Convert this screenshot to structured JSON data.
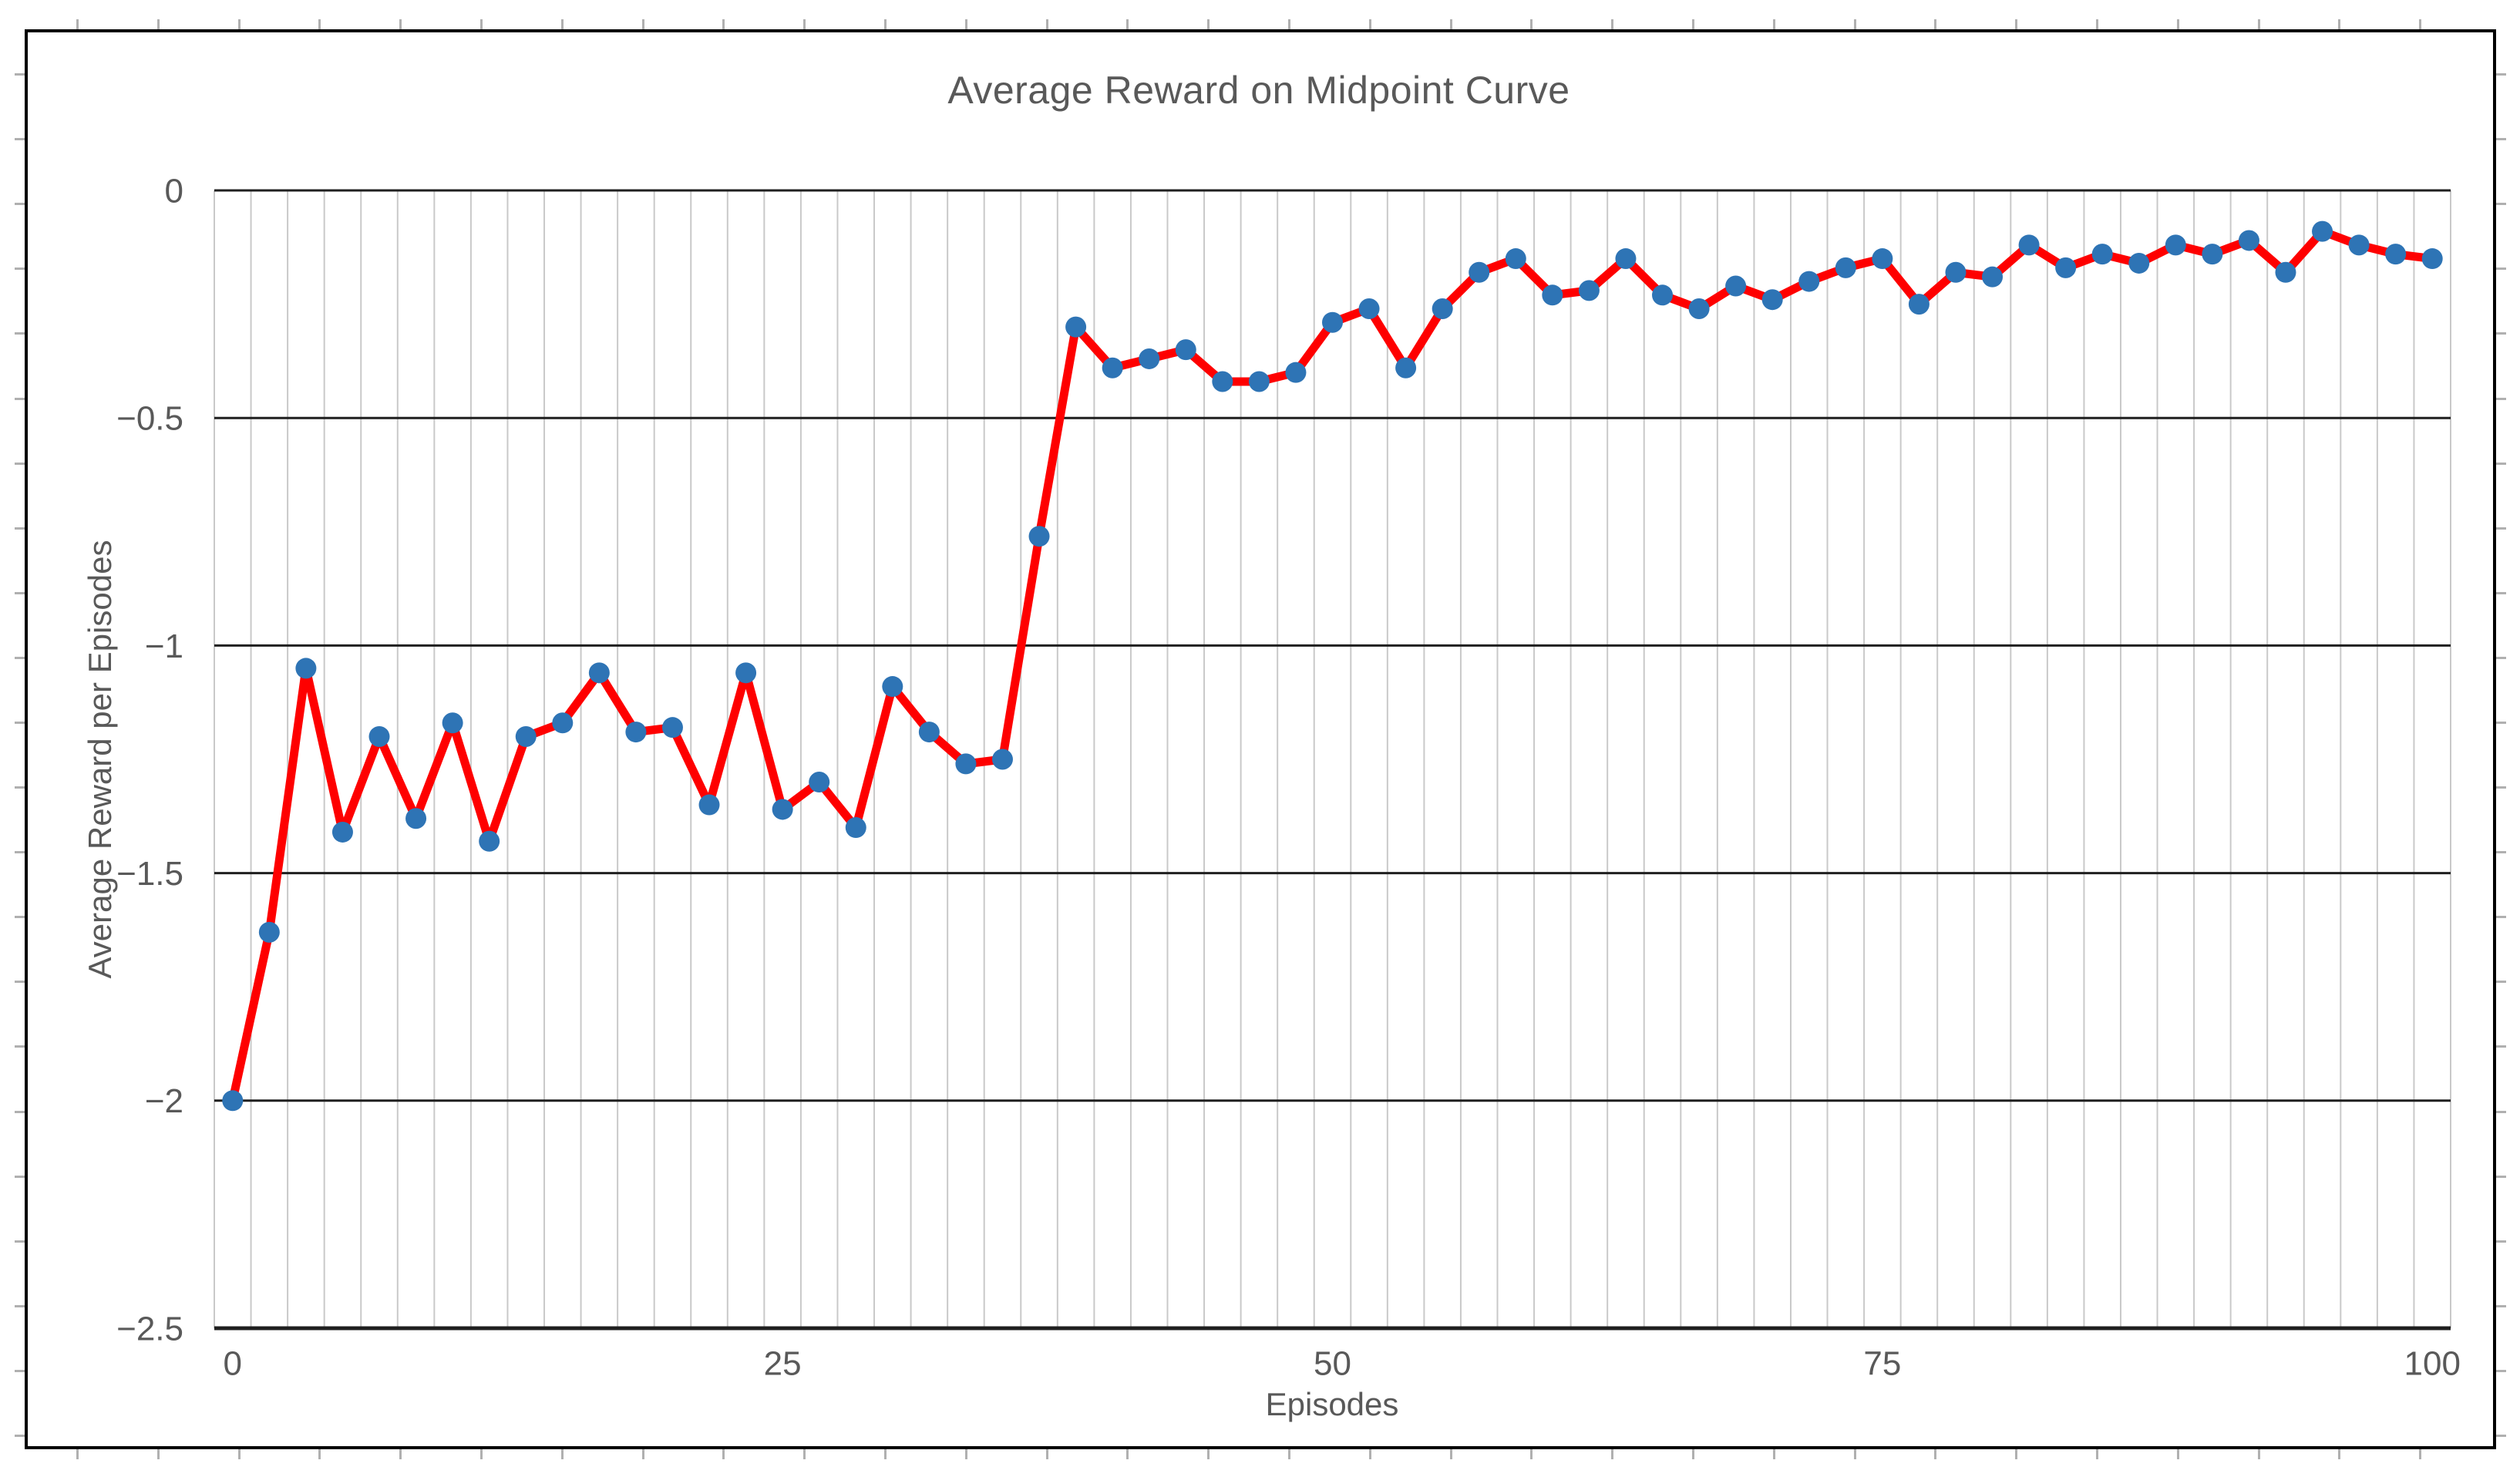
{
  "figure": {
    "title": "Average Reward on Midpoint Curve"
  },
  "chart_data": {
    "type": "line",
    "title": "Average Reward on Midpoint Curve",
    "xlabel": "Episodes",
    "ylabel": "Average Reward per Episodes",
    "ylim": [
      -2.5,
      0
    ],
    "xlim_labels": [
      0,
      100
    ],
    "grid": "vertical-minor-gray, horizontal-major-black",
    "legend_position": "none",
    "n_points": 61,
    "x_tick_labels": [
      "0",
      "25",
      "50",
      "75",
      "100"
    ],
    "x_tick_indices": [
      0,
      15,
      30,
      45,
      60
    ],
    "y_tick_labels": [
      "0",
      "−0.5",
      "−1",
      "−1.5",
      "−2",
      "−2.5"
    ],
    "y_tick_values": [
      0,
      -0.5,
      -1,
      -1.5,
      -2,
      -2.5
    ],
    "x": [
      0,
      1.67,
      3.33,
      5,
      6.67,
      8.33,
      10,
      11.67,
      13.33,
      15,
      16.67,
      18.33,
      20,
      21.67,
      23.33,
      25,
      26.67,
      28.33,
      30,
      31.67,
      33.33,
      35,
      36.67,
      38.33,
      40,
      41.67,
      43.33,
      45,
      46.67,
      48.33,
      50,
      51.67,
      53.33,
      55,
      56.67,
      58.33,
      60,
      61.67,
      63.33,
      65,
      66.67,
      68.33,
      70,
      71.67,
      73.33,
      75,
      76.67,
      78.33,
      80,
      81.67,
      83.33,
      85,
      86.67,
      88.33,
      90,
      91.67,
      93.33,
      95,
      96.67,
      98.33,
      100
    ],
    "values": [
      -2.0,
      -1.63,
      -1.05,
      -1.41,
      -1.2,
      -1.38,
      -1.17,
      -1.43,
      -1.2,
      -1.17,
      -1.06,
      -1.19,
      -1.18,
      -1.35,
      -1.06,
      -1.36,
      -1.3,
      -1.4,
      -1.09,
      -1.19,
      -1.26,
      -1.25,
      -0.76,
      -0.3,
      -0.39,
      -0.37,
      -0.35,
      -0.42,
      -0.42,
      -0.4,
      -0.29,
      -0.26,
      -0.39,
      -0.26,
      -0.18,
      -0.15,
      -0.23,
      -0.22,
      -0.15,
      -0.23,
      -0.26,
      -0.21,
      -0.24,
      -0.2,
      -0.17,
      -0.15,
      -0.25,
      -0.18,
      -0.19,
      -0.12,
      -0.17,
      -0.14,
      -0.16,
      -0.12,
      -0.14,
      -0.11,
      -0.18,
      -0.09,
      -0.12,
      -0.14,
      -0.15
    ],
    "series_name": "Average Reward",
    "line_color": "#fe0000",
    "marker_color": "#2e74b5",
    "minor_grid_color": "#c9c9c9",
    "major_grid_color": "#1f1f1f",
    "axis_line_color": "#1f1f1f",
    "frame_color": "#000000",
    "text_color": "#595959"
  }
}
